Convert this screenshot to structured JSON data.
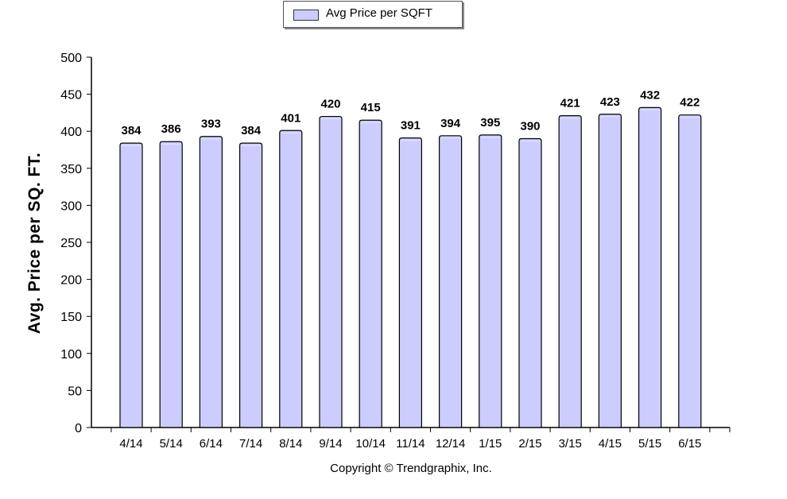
{
  "chart_data": {
    "type": "bar",
    "ylabel": "Avg. Price per SQ. FT.",
    "xlabel": "",
    "categories": [
      "4/14",
      "5/14",
      "6/14",
      "7/14",
      "8/14",
      "9/14",
      "10/14",
      "11/14",
      "12/14",
      "1/15",
      "2/15",
      "3/15",
      "4/15",
      "5/15",
      "6/15"
    ],
    "series": [
      {
        "name": "Avg Price per SQFT",
        "values": [
          384,
          386,
          393,
          384,
          401,
          420,
          415,
          391,
          394,
          395,
          390,
          421,
          423,
          432,
          422
        ]
      }
    ],
    "ylim": [
      0,
      500
    ],
    "yticks": [
      0,
      50,
      100,
      150,
      200,
      250,
      300,
      350,
      400,
      450,
      500
    ],
    "grid": false,
    "legend": "top-center",
    "colors": {
      "bar_fill": "#ccccff",
      "bar_stroke": "#000000",
      "axis": "#000000"
    },
    "copyright": "Copyright © Trendgraphix, Inc."
  }
}
